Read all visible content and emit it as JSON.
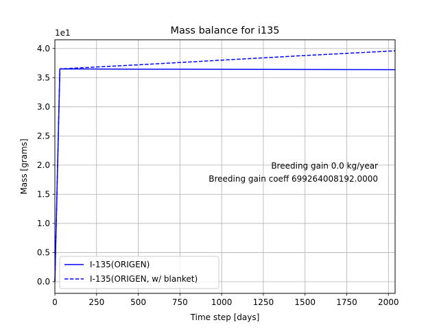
{
  "chart_data": {
    "type": "line",
    "title": "Mass balance for i135",
    "xlabel": "Time step [days]",
    "ylabel": "Mass [grams]",
    "y_offset_label": "1e1",
    "xlim": [
      0,
      2040
    ],
    "ylim": [
      -0.2,
      4.15
    ],
    "x_ticks": [
      0,
      250,
      500,
      750,
      1000,
      1250,
      1500,
      1750,
      2000
    ],
    "y_ticks": [
      0.0,
      0.5,
      1.0,
      1.5,
      2.0,
      2.5,
      3.0,
      3.5,
      4.0
    ],
    "y_tick_labels": [
      "0.0",
      "0.5",
      "1.0",
      "1.5",
      "2.0",
      "2.5",
      "3.0",
      "3.5",
      "4.0"
    ],
    "grid": true,
    "legend_position": "lower-left",
    "series": [
      {
        "name": "I-135(ORIGEN)",
        "color": "#0000ff",
        "style": "solid",
        "x": [
          0,
          30,
          500,
          1000,
          1500,
          2040
        ],
        "y": [
          0.0,
          3.65,
          3.645,
          3.643,
          3.64,
          3.637
        ]
      },
      {
        "name": "I-135(ORIGEN, w/ blanket)",
        "color": "#0000ff",
        "style": "dashed",
        "x": [
          0,
          30,
          500,
          1000,
          1500,
          2040
        ],
        "y": [
          0.0,
          3.65,
          3.72,
          3.8,
          3.88,
          3.96
        ]
      }
    ],
    "annotations": [
      "Breeding gain  0.0 kg/year",
      "Breeding gain coeff  699264008192.0000"
    ]
  }
}
